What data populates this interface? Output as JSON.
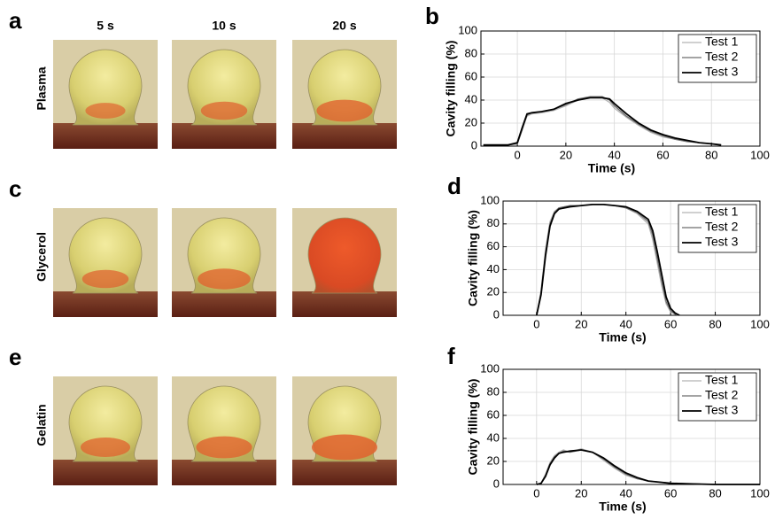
{
  "panel_labels": [
    "a",
    "c",
    "e"
  ],
  "column_headers": [
    "5 s",
    "10 s",
    "20 s"
  ],
  "row_labels": [
    "Plasma",
    "Glycerol",
    "Gelatin"
  ],
  "chart_data": [
    {
      "type": "line",
      "panel_label": "b",
      "x_label": "Time (s)",
      "y_label": "Cavity filling (%)",
      "xlim": [
        -15,
        100
      ],
      "ylim": [
        0,
        100
      ],
      "xticks": [
        0,
        20,
        40,
        60,
        80,
        100
      ],
      "yticks": [
        0,
        20,
        40,
        60,
        80,
        100
      ],
      "grid": true,
      "legend": "upper right",
      "x": [
        -14,
        -8,
        -4,
        0,
        2,
        4,
        6,
        10,
        15,
        20,
        25,
        30,
        35,
        38,
        40,
        45,
        50,
        55,
        60,
        65,
        70,
        75,
        80,
        84
      ],
      "series": [
        {
          "name": "Test 1",
          "color": "#b4b4b4",
          "values": [
            1,
            1,
            1,
            2,
            15,
            26,
            28,
            29,
            31,
            35,
            40,
            42,
            42,
            38,
            33,
            25,
            18,
            12,
            8,
            6,
            4,
            3,
            2,
            1
          ]
        },
        {
          "name": "Test 2",
          "color": "#6e6e6e",
          "values": [
            1,
            1,
            1,
            2,
            14,
            27,
            29,
            30,
            32,
            36,
            41,
            43,
            43,
            40,
            35,
            26,
            19,
            13,
            9,
            6,
            4,
            3,
            2,
            1
          ]
        },
        {
          "name": "Test 3",
          "color": "#000000",
          "values": [
            1,
            1,
            1,
            3,
            16,
            28,
            29,
            30,
            32,
            37,
            40,
            42,
            42,
            41,
            37,
            28,
            20,
            14,
            10,
            7,
            5,
            3,
            2,
            1
          ]
        }
      ]
    },
    {
      "type": "line",
      "panel_label": "d",
      "x_label": "Time (s)",
      "y_label": "Cavity filling (%)",
      "xlim": [
        -15,
        100
      ],
      "ylim": [
        0,
        100
      ],
      "xticks": [
        0,
        20,
        40,
        60,
        80,
        100
      ],
      "yticks": [
        0,
        20,
        40,
        60,
        80,
        100
      ],
      "grid": true,
      "legend": "upper right",
      "x": [
        0,
        2,
        4,
        6,
        8,
        10,
        15,
        20,
        25,
        30,
        35,
        40,
        45,
        50,
        52,
        54,
        56,
        58,
        60,
        62,
        64
      ],
      "series": [
        {
          "name": "Test 1",
          "color": "#b4b4b4",
          "values": [
            0,
            22,
            58,
            82,
            91,
            94,
            96,
            96,
            97,
            97,
            96,
            94,
            89,
            80,
            66,
            46,
            26,
            10,
            3,
            1,
            0
          ]
        },
        {
          "name": "Test 2",
          "color": "#6e6e6e",
          "values": [
            0,
            20,
            55,
            80,
            90,
            94,
            96,
            96,
            97,
            97,
            96,
            94,
            90,
            82,
            70,
            50,
            30,
            12,
            4,
            1,
            0
          ]
        },
        {
          "name": "Test 3",
          "color": "#000000",
          "values": [
            0,
            18,
            52,
            78,
            89,
            93,
            95,
            96,
            97,
            97,
            96,
            95,
            91,
            84,
            74,
            56,
            36,
            16,
            6,
            2,
            0
          ]
        }
      ]
    },
    {
      "type": "line",
      "panel_label": "f",
      "x_label": "Time (s)",
      "y_label": "Cavity filling (%)",
      "xlim": [
        -15,
        100
      ],
      "ylim": [
        0,
        100
      ],
      "xticks": [
        0,
        20,
        40,
        60,
        80,
        100
      ],
      "yticks": [
        0,
        20,
        40,
        60,
        80,
        100
      ],
      "grid": true,
      "legend": "upper right",
      "x": [
        0,
        2,
        4,
        6,
        8,
        10,
        12,
        15,
        20,
        25,
        30,
        35,
        40,
        45,
        50,
        55,
        60,
        70,
        80,
        90,
        100
      ],
      "series": [
        {
          "name": "Test 1",
          "color": "#b4b4b4",
          "values": [
            0,
            1,
            9,
            19,
            25,
            28,
            30,
            28,
            31,
            28,
            21,
            14,
            8,
            5,
            3,
            2,
            1,
            0.5,
            0,
            0,
            0
          ]
        },
        {
          "name": "Test 2",
          "color": "#6e6e6e",
          "values": [
            0,
            1,
            8,
            18,
            24,
            27,
            29,
            28,
            30,
            28,
            22,
            15,
            9,
            5,
            3,
            2,
            1,
            0.5,
            0,
            0,
            0
          ]
        },
        {
          "name": "Test 3",
          "color": "#000000",
          "values": [
            0,
            1,
            7,
            17,
            23,
            27,
            28,
            29,
            30,
            28,
            23,
            16,
            10,
            6,
            3,
            2,
            1,
            0.5,
            0,
            0,
            0
          ]
        }
      ]
    }
  ]
}
